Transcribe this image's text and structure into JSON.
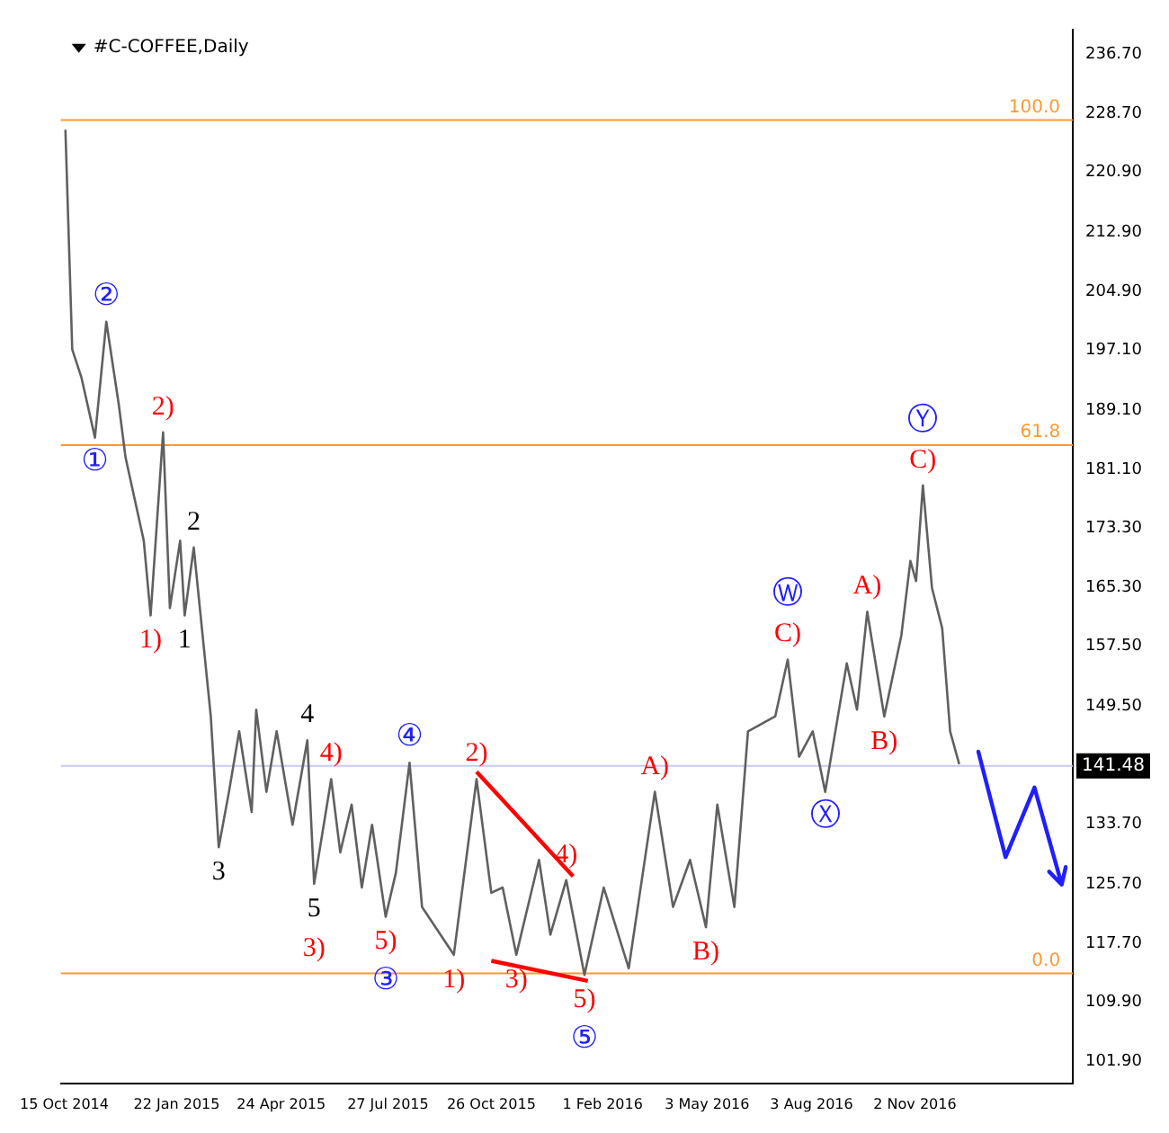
{
  "chart_data": {
    "type": "line",
    "title": "#C-COFFEE,Daily",
    "xlim": [
      "2014-10-12",
      "2017-03-21"
    ],
    "xticks": [
      {
        "value": "2014-10-15",
        "label": "15 Oct 2014"
      },
      {
        "value": "2015-01-22",
        "label": "22 Jan 2015"
      },
      {
        "value": "2015-04-24",
        "label": "24 Apr 2015"
      },
      {
        "value": "2015-07-27",
        "label": "27 Jul 2015"
      },
      {
        "value": "2015-10-26",
        "label": "26 Oct 2015"
      },
      {
        "value": "2016-02-01",
        "label": "1 Feb 2016"
      },
      {
        "value": "2016-05-03",
        "label": "3 May 2016"
      },
      {
        "value": "2016-08-03",
        "label": "3 Aug 2016"
      },
      {
        "value": "2016-11-02",
        "label": "2 Nov 2016"
      }
    ],
    "ylim": [
      99,
      240
    ],
    "yticks": [
      {
        "value": 236.7,
        "label": "236.70"
      },
      {
        "value": 228.7,
        "label": "228.70"
      },
      {
        "value": 220.9,
        "label": "220.90"
      },
      {
        "value": 212.9,
        "label": "212.90"
      },
      {
        "value": 204.9,
        "label": "204.90"
      },
      {
        "value": 197.1,
        "label": "197.10"
      },
      {
        "value": 189.1,
        "label": "189.10"
      },
      {
        "value": 181.1,
        "label": "181.10"
      },
      {
        "value": 173.3,
        "label": "173.30"
      },
      {
        "value": 165.3,
        "label": "165.30"
      },
      {
        "value": 157.5,
        "label": "157.50"
      },
      {
        "value": 149.5,
        "label": "149.50"
      },
      {
        "value": 133.7,
        "label": "133.70"
      },
      {
        "value": 125.7,
        "label": "125.70"
      },
      {
        "value": 117.7,
        "label": "117.70"
      },
      {
        "value": 109.9,
        "label": "109.90"
      },
      {
        "value": 101.9,
        "label": "101.90"
      }
    ],
    "grid": false,
    "legend": false,
    "marker": "none",
    "line_style": "solid",
    "series": [
      {
        "color": "#606060",
        "x": [
          "2014-10-16",
          "2014-10-22",
          "2014-10-30",
          "2014-11-11",
          "2014-11-21",
          "2014-12-02",
          "2014-12-08",
          "2014-12-24",
          "2014-12-30",
          "2015-01-10",
          "2015-01-16",
          "2015-01-25",
          "2015-01-29",
          "2015-02-06",
          "2015-02-21",
          "2015-02-28",
          "2015-03-09",
          "2015-03-18",
          "2015-03-29",
          "2015-04-02",
          "2015-04-11",
          "2015-04-20",
          "2015-05-04",
          "2015-05-17",
          "2015-05-23",
          "2015-06-07",
          "2015-06-15",
          "2015-06-25",
          "2015-07-04",
          "2015-07-13",
          "2015-07-25",
          "2015-08-03",
          "2015-08-15",
          "2015-08-26",
          "2015-09-23",
          "2015-10-13",
          "2015-10-26",
          "2015-11-05",
          "2015-11-17",
          "2015-12-07",
          "2015-12-17",
          "2015-12-31",
          "2016-01-16",
          "2016-02-02",
          "2016-02-24",
          "2016-03-18",
          "2016-04-03",
          "2016-04-18",
          "2016-05-02",
          "2016-05-12",
          "2016-05-27",
          "2016-06-08",
          "2016-07-02",
          "2016-07-13",
          "2016-07-23",
          "2016-08-04",
          "2016-08-15",
          "2016-09-03",
          "2016-09-12",
          "2016-09-21",
          "2016-10-06",
          "2016-10-21",
          "2016-10-29",
          "2016-11-03",
          "2016-11-09",
          "2016-11-17",
          "2016-11-26",
          "2016-12-03",
          "2016-12-11"
        ],
        "values": [
          226.6,
          197.2,
          193.5,
          185.4,
          200.9,
          189.8,
          182.7,
          171.6,
          161.6,
          186.1,
          162.6,
          171.6,
          161.6,
          170.7,
          148.1,
          130.6,
          138.0,
          146.1,
          135.3,
          149.0,
          138.0,
          146.1,
          133.6,
          144.9,
          125.7,
          139.7,
          129.9,
          136.3,
          125.2,
          133.6,
          121.3,
          127.2,
          141.9,
          122.6,
          116.2,
          139.7,
          124.5,
          125.2,
          116.2,
          128.9,
          118.9,
          126.2,
          113.5,
          125.2,
          114.4,
          138.0,
          122.6,
          128.9,
          119.9,
          136.3,
          122.6,
          146.1,
          148.1,
          155.7,
          142.7,
          146.1,
          138.0,
          155.2,
          149.0,
          162.1,
          148.1,
          158.9,
          168.9,
          166.2,
          179.0,
          165.3,
          159.9,
          146.1,
          141.7
        ]
      },
      {
        "color": "#ff0000",
        "x": [
          "2015-10-13",
          "2016-01-06"
        ],
        "values": [
          140.7,
          126.7
        ]
      },
      {
        "color": "#ff0000",
        "x": [
          "2015-10-26",
          "2016-01-19"
        ],
        "values": [
          115.4,
          112.7
        ]
      }
    ],
    "ref_lines": [
      {
        "axis": "y",
        "value": 141.48,
        "label": "141.48",
        "color": "#c8c8f0"
      },
      {
        "axis": "y",
        "value": 227.9,
        "color": "#ff9933"
      },
      {
        "axis": "y",
        "value": 184.4,
        "color": "#ff9933"
      },
      {
        "axis": "y",
        "value": 113.7,
        "color": "#ff9933"
      }
    ],
    "annotations": [
      {
        "text": "100.0",
        "x": "2017-03-10",
        "y": 227.9
      },
      {
        "text": "61.8",
        "x": "2017-03-10",
        "y": 184.4
      },
      {
        "text": "0.0",
        "x": "2017-03-10",
        "y": 113.7
      },
      {
        "text": "②",
        "x": "2014-11-21",
        "y": 200.9
      },
      {
        "text": "①",
        "x": "2014-11-11",
        "y": 185.4
      },
      {
        "text": "2)",
        "x": "2015-01-10",
        "y": 186.1
      },
      {
        "text": "1)",
        "x": "2014-12-30",
        "y": 161.6
      },
      {
        "text": "2",
        "x": "2015-02-06",
        "y": 170.7
      },
      {
        "text": "1",
        "x": "2015-01-29",
        "y": 161.6
      },
      {
        "text": "3",
        "x": "2015-02-28",
        "y": 130.6
      },
      {
        "text": "4",
        "x": "2015-05-17",
        "y": 144.9
      },
      {
        "text": "4)",
        "x": "2015-06-07",
        "y": 139.7
      },
      {
        "text": "5",
        "x": "2015-05-23",
        "y": 125.7
      },
      {
        "text": "3)",
        "x": "2015-05-23",
        "y": 125.7
      },
      {
        "text": "5)",
        "x": "2015-07-25",
        "y": 121.3
      },
      {
        "text": "③",
        "x": "2015-07-25",
        "y": 121.3
      },
      {
        "text": "④",
        "x": "2015-08-15",
        "y": 141.9
      },
      {
        "text": "2)",
        "x": "2015-10-13",
        "y": 139.7
      },
      {
        "text": "1)",
        "x": "2015-09-23",
        "y": 116.2
      },
      {
        "text": "4)",
        "x": "2015-12-31",
        "y": 126.2
      },
      {
        "text": "3)",
        "x": "2015-11-17",
        "y": 116.2
      },
      {
        "text": "5)",
        "x": "2016-01-16",
        "y": 113.5
      },
      {
        "text": "⑤",
        "x": "2016-01-16",
        "y": 113.5
      },
      {
        "text": "A)",
        "x": "2016-03-18",
        "y": 138.0
      },
      {
        "text": "B)",
        "x": "2016-05-02",
        "y": 119.9
      },
      {
        "text": "C)",
        "x": "2016-07-13",
        "y": 155.7
      },
      {
        "text": "Ⓦ",
        "x": "2016-07-13",
        "y": 155.7
      },
      {
        "text": "Ⓧ",
        "x": "2016-08-15",
        "y": 138.0
      },
      {
        "text": "A)",
        "x": "2016-09-21",
        "y": 162.1
      },
      {
        "text": "B)",
        "x": "2016-10-06",
        "y": 148.1
      },
      {
        "text": "C)",
        "x": "2016-11-09",
        "y": 179.0
      },
      {
        "text": "Ⓨ",
        "x": "2016-11-09",
        "y": 179.0
      }
    ]
  }
}
